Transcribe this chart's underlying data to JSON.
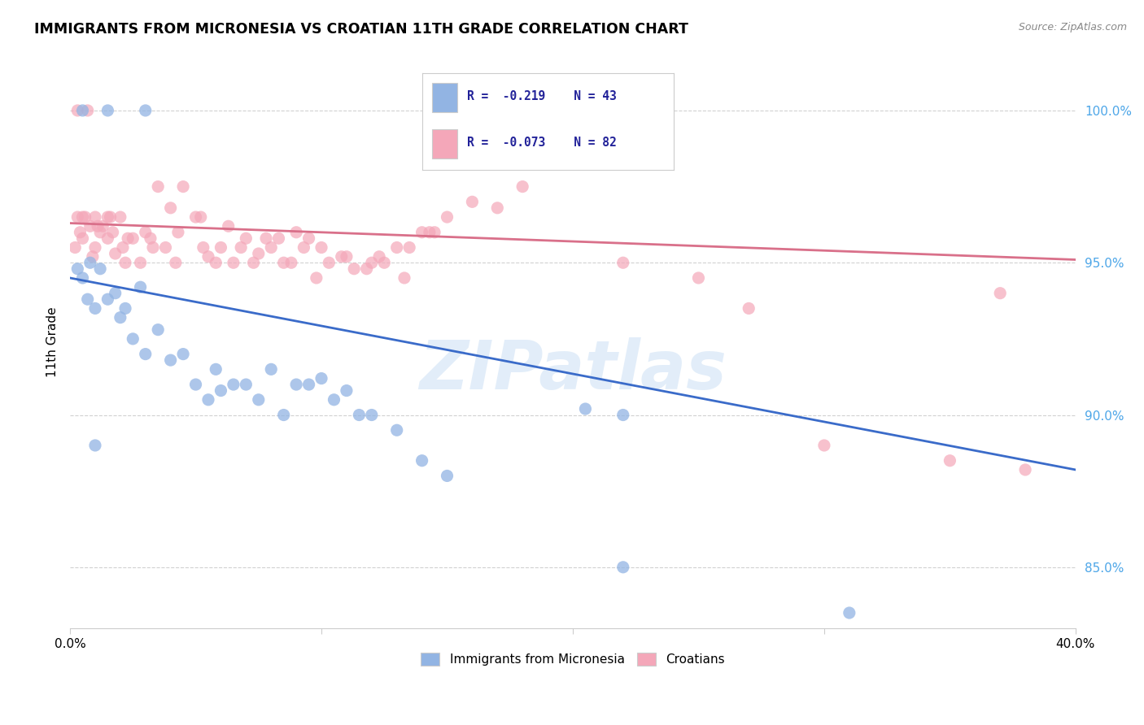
{
  "title": "IMMIGRANTS FROM MICRONESIA VS CROATIAN 11TH GRADE CORRELATION CHART",
  "source": "Source: ZipAtlas.com",
  "ylabel": "11th Grade",
  "y_ticks": [
    85.0,
    90.0,
    95.0,
    100.0
  ],
  "y_tick_labels": [
    "85.0%",
    "90.0%",
    "95.0%",
    "100.0%"
  ],
  "x_range": [
    0.0,
    40.0
  ],
  "y_range": [
    83.0,
    101.8
  ],
  "blue_R": -0.219,
  "blue_N": 43,
  "pink_R": -0.073,
  "pink_N": 82,
  "blue_color": "#92b4e3",
  "pink_color": "#f4a7b9",
  "blue_line_color": "#3a6bc9",
  "pink_line_color": "#d9708a",
  "watermark": "ZIPatlas",
  "legend_label_blue": "Immigrants from Micronesia",
  "legend_label_pink": "Croatians",
  "blue_line_x0": 0.0,
  "blue_line_y0": 94.5,
  "blue_line_x1": 40.0,
  "blue_line_y1": 88.2,
  "pink_line_x0": 0.0,
  "pink_line_y0": 96.3,
  "pink_line_x1": 40.0,
  "pink_line_y1": 95.1,
  "blue_scatter_x": [
    0.3,
    0.5,
    0.5,
    0.7,
    0.8,
    1.0,
    1.0,
    1.2,
    1.5,
    1.5,
    1.8,
    2.0,
    2.2,
    2.5,
    2.8,
    3.0,
    3.0,
    3.5,
    4.0,
    4.5,
    5.0,
    5.5,
    5.8,
    6.0,
    6.5,
    7.0,
    7.5,
    8.0,
    8.5,
    9.0,
    9.5,
    10.0,
    10.5,
    11.0,
    11.5,
    12.0,
    13.0,
    14.0,
    15.0,
    20.5,
    22.0,
    31.0,
    22.0
  ],
  "blue_scatter_y": [
    94.8,
    94.5,
    100.0,
    93.8,
    95.0,
    93.5,
    89.0,
    94.8,
    93.8,
    100.0,
    94.0,
    93.2,
    93.5,
    92.5,
    94.2,
    92.0,
    100.0,
    92.8,
    91.8,
    92.0,
    91.0,
    90.5,
    91.5,
    90.8,
    91.0,
    91.0,
    90.5,
    91.5,
    90.0,
    91.0,
    91.0,
    91.2,
    90.5,
    90.8,
    90.0,
    90.0,
    89.5,
    88.5,
    88.0,
    90.2,
    90.0,
    83.5,
    85.0
  ],
  "pink_scatter_x": [
    0.2,
    0.3,
    0.3,
    0.4,
    0.5,
    0.5,
    0.6,
    0.7,
    0.8,
    0.9,
    1.0,
    1.0,
    1.1,
    1.2,
    1.3,
    1.5,
    1.5,
    1.6,
    1.7,
    1.8,
    2.0,
    2.1,
    2.2,
    2.3,
    2.5,
    2.8,
    3.0,
    3.2,
    3.3,
    3.5,
    3.8,
    4.0,
    4.2,
    4.3,
    4.5,
    5.0,
    5.2,
    5.3,
    5.5,
    5.8,
    6.0,
    6.3,
    6.5,
    6.8,
    7.0,
    7.3,
    7.5,
    7.8,
    8.0,
    8.3,
    8.5,
    8.8,
    9.0,
    9.3,
    9.5,
    9.8,
    10.0,
    10.3,
    10.8,
    11.0,
    11.3,
    11.8,
    12.0,
    12.3,
    12.5,
    13.0,
    13.3,
    13.5,
    14.0,
    14.3,
    14.5,
    15.0,
    16.0,
    17.0,
    18.0,
    22.0,
    25.0,
    27.0,
    30.0,
    35.0,
    38.0,
    37.0
  ],
  "pink_scatter_y": [
    95.5,
    96.5,
    100.0,
    96.0,
    95.8,
    96.5,
    96.5,
    100.0,
    96.2,
    95.2,
    95.5,
    96.5,
    96.2,
    96.0,
    96.2,
    95.8,
    96.5,
    96.5,
    96.0,
    95.3,
    96.5,
    95.5,
    95.0,
    95.8,
    95.8,
    95.0,
    96.0,
    95.8,
    95.5,
    97.5,
    95.5,
    96.8,
    95.0,
    96.0,
    97.5,
    96.5,
    96.5,
    95.5,
    95.2,
    95.0,
    95.5,
    96.2,
    95.0,
    95.5,
    95.8,
    95.0,
    95.3,
    95.8,
    95.5,
    95.8,
    95.0,
    95.0,
    96.0,
    95.5,
    95.8,
    94.5,
    95.5,
    95.0,
    95.2,
    95.2,
    94.8,
    94.8,
    95.0,
    95.2,
    95.0,
    95.5,
    94.5,
    95.5,
    96.0,
    96.0,
    96.0,
    96.5,
    97.0,
    96.8,
    97.5,
    95.0,
    94.5,
    93.5,
    89.0,
    88.5,
    88.2,
    94.0
  ]
}
